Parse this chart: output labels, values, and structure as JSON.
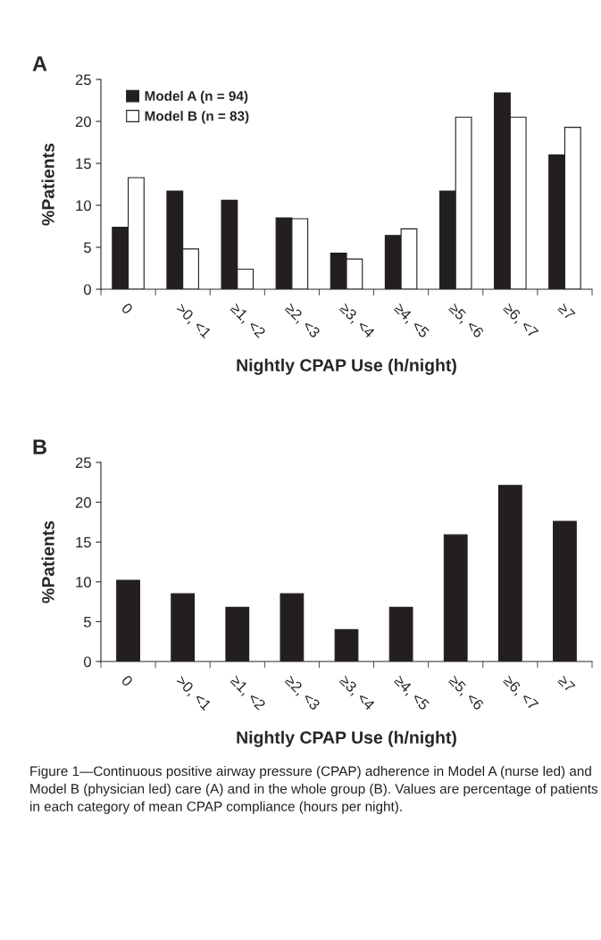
{
  "chart_data": [
    {
      "type": "bar",
      "title": "A",
      "xlabel": "Nightly CPAP Use (h/night)",
      "ylabel": "%Patients",
      "categories": [
        "0",
        ">0, <1",
        "≥1, <2",
        "≥2, <3",
        "≥3, <4",
        "≥4, <5",
        "≥5, <6",
        "≥6, <7",
        "≥7"
      ],
      "series": [
        {
          "name": "Model A (n = 94)",
          "color": "#231f20",
          "values": [
            7.4,
            11.7,
            10.6,
            8.5,
            4.3,
            6.4,
            11.7,
            23.4,
            16.0
          ]
        },
        {
          "name": "Model B (n = 83)",
          "color": "#ffffff",
          "values": [
            13.3,
            4.8,
            2.4,
            8.4,
            3.6,
            7.2,
            20.5,
            20.5,
            19.3
          ]
        }
      ],
      "ylim": [
        0,
        25
      ],
      "yticks": [
        0,
        5,
        10,
        15,
        20,
        25
      ],
      "grid": false,
      "legend": "top left"
    },
    {
      "type": "bar",
      "title": "B",
      "xlabel": "Nightly CPAP Use (h/night)",
      "ylabel": "%Patients",
      "categories": [
        "0",
        ">0, <1",
        "≥1, <2",
        "≥2, <3",
        "≥3, <4",
        "≥4, <5",
        "≥5, <6",
        "≥6, <7",
        "≥7"
      ],
      "series": [
        {
          "color": "#231f20",
          "values": [
            10.2,
            8.5,
            6.8,
            8.5,
            4.0,
            6.8,
            15.9,
            22.1,
            17.6
          ]
        }
      ],
      "ylim": [
        0,
        25
      ],
      "yticks": [
        0,
        5,
        10,
        15,
        20,
        25
      ],
      "grid": false,
      "legend": false,
      "annotations": [
        "Figure 1—Continuous positive airway pressure (CPAP) adherence in Model A (nurse led) and Model B (physician led) care (A) and in the whole group (B). Values are percentage of patients in each category of mean CPAP compliance (hours per night)."
      ]
    }
  ]
}
